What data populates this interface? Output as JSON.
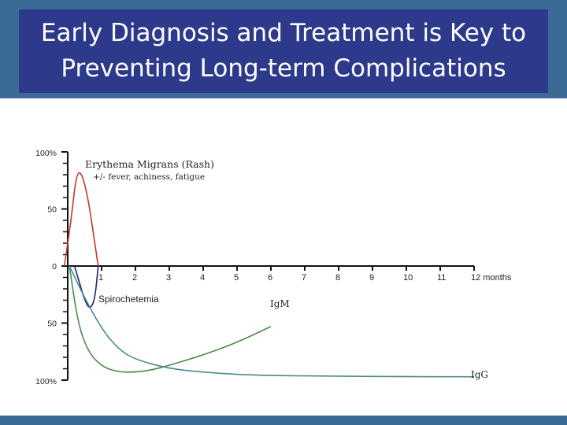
{
  "slide": {
    "title_line1": "Early Diagnosis and Treatment is Key to",
    "title_line2": "Preventing Long-term Complications",
    "colors": {
      "band": "#3a6a95",
      "title_box": "#2d3a8c",
      "title_text": "#ffffff"
    }
  },
  "chart_data": {
    "type": "line",
    "x_unit": "months",
    "x_ticks": [
      "0",
      "1",
      "2",
      "3",
      "4",
      "5",
      "6",
      "7",
      "8",
      "9",
      "10",
      "11",
      "12 months"
    ],
    "xlim": [
      0,
      12
    ],
    "y_ticks_top": [
      "100%",
      "50"
    ],
    "y_zero": "0",
    "y_ticks_bottom": [
      "50",
      "100%"
    ],
    "ylim": [
      -100,
      100
    ],
    "annotations": {
      "rash_title": "Erythema Migrans (Rash)",
      "rash_sub": "+/- fever, achiness, fatigue",
      "spirochetemia": "Spirochetemia",
      "igm": "IgM",
      "igg": "IgG"
    },
    "series": [
      {
        "key": "rash",
        "color": "#c0392b",
        "x": [
          -0.1,
          0.1,
          0.25,
          0.4,
          0.6,
          0.8,
          0.9
        ],
        "y": [
          0,
          40,
          80,
          83,
          60,
          20,
          0
        ]
      },
      {
        "key": "spiro",
        "color": "#1a2a6e",
        "x": [
          0.2,
          0.35,
          0.5,
          0.65,
          0.8,
          0.9
        ],
        "y": [
          0,
          -15,
          -30,
          -38,
          -30,
          0
        ]
      },
      {
        "key": "igm",
        "color": "#4a8a4a",
        "x": [
          0.05,
          0.3,
          0.6,
          1,
          1.5,
          2,
          2.5,
          3,
          4,
          5,
          6
        ],
        "y": [
          0,
          -50,
          -75,
          -88,
          -93,
          -93,
          -91,
          -87,
          -78,
          -67,
          -53
        ]
      },
      {
        "key": "igg",
        "color": "#4a8a8a",
        "x": [
          0.05,
          0.5,
          1,
          1.5,
          2,
          3,
          4,
          5,
          6,
          8,
          10,
          12
        ],
        "y": [
          0,
          -28,
          -55,
          -73,
          -82,
          -90,
          -93,
          -95,
          -96,
          -96.5,
          -97,
          -97
        ]
      }
    ]
  }
}
